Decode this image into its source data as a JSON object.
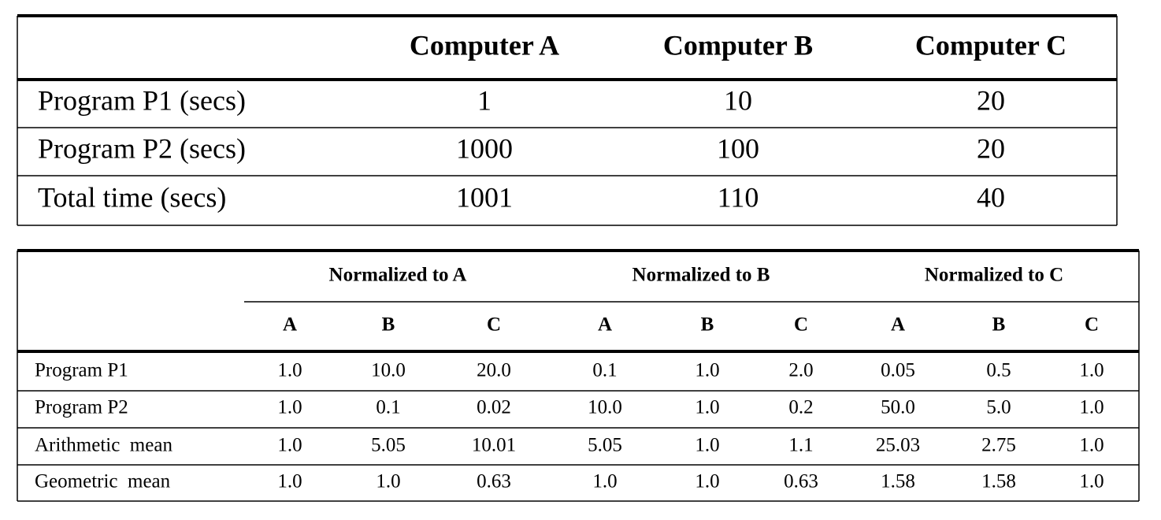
{
  "table1": {
    "columns": [
      "Computer A",
      "Computer B",
      "Computer C"
    ],
    "rows": [
      {
        "label": "Program P1 (secs)",
        "cells": [
          "1",
          "10",
          "20"
        ]
      },
      {
        "label": "Program P2 (secs)",
        "cells": [
          "1000",
          "100",
          "20"
        ]
      },
      {
        "label": "Total time (secs)",
        "cells": [
          "1001",
          "110",
          "40"
        ]
      }
    ]
  },
  "table2": {
    "groups": [
      "Normalized to A",
      "Normalized to B",
      "Normalized to C"
    ],
    "subcolumns": [
      "A",
      "B",
      "C",
      "A",
      "B",
      "C",
      "A",
      "B",
      "C"
    ],
    "rows": [
      {
        "label": "Program P1",
        "cells": [
          "1.0",
          "10.0",
          "20.0",
          "0.1",
          "1.0",
          "2.0",
          "0.05",
          "0.5",
          "1.0"
        ]
      },
      {
        "label": "Program P2",
        "cells": [
          "1.0",
          "0.1",
          "0.02",
          "10.0",
          "1.0",
          "0.2",
          "50.0",
          "5.0",
          "1.0"
        ]
      },
      {
        "label": "Arithmetic  mean",
        "cells": [
          "1.0",
          "5.05",
          "10.01",
          "5.05",
          "1.0",
          "1.1",
          "25.03",
          "2.75",
          "1.0"
        ]
      },
      {
        "label": "Geometric  mean",
        "cells": [
          "1.0",
          "1.0",
          "0.63",
          "1.0",
          "1.0",
          "0.63",
          "1.58",
          "1.58",
          "1.0"
        ]
      }
    ]
  }
}
